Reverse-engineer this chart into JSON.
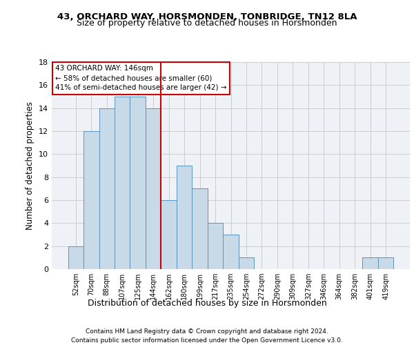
{
  "title1": "43, ORCHARD WAY, HORSMONDEN, TONBRIDGE, TN12 8LA",
  "title2": "Size of property relative to detached houses in Horsmonden",
  "xlabel": "Distribution of detached houses by size in Horsmonden",
  "ylabel": "Number of detached properties",
  "footnote1": "Contains HM Land Registry data © Crown copyright and database right 2024.",
  "footnote2": "Contains public sector information licensed under the Open Government Licence v3.0.",
  "annotation_line1": "43 ORCHARD WAY: 146sqm",
  "annotation_line2": "← 58% of detached houses are smaller (60)",
  "annotation_line3": "41% of semi-detached houses are larger (42) →",
  "bar_color": "#c8d9e8",
  "bar_edge_color": "#5a93c0",
  "grid_color": "#cccccc",
  "bg_color": "#eef2f7",
  "ref_line_color": "#cc0000",
  "annotation_box_color": "#cc0000",
  "categories": [
    "52sqm",
    "70sqm",
    "88sqm",
    "107sqm",
    "125sqm",
    "144sqm",
    "162sqm",
    "180sqm",
    "199sqm",
    "217sqm",
    "235sqm",
    "254sqm",
    "272sqm",
    "290sqm",
    "309sqm",
    "327sqm",
    "346sqm",
    "364sqm",
    "382sqm",
    "401sqm",
    "419sqm"
  ],
  "values": [
    2,
    12,
    14,
    15,
    15,
    14,
    6,
    9,
    7,
    4,
    3,
    1,
    0,
    0,
    0,
    0,
    0,
    0,
    0,
    1,
    1
  ],
  "ref_bar_index": 5,
  "ylim": [
    0,
    18
  ],
  "yticks": [
    0,
    2,
    4,
    6,
    8,
    10,
    12,
    14,
    16,
    18
  ]
}
